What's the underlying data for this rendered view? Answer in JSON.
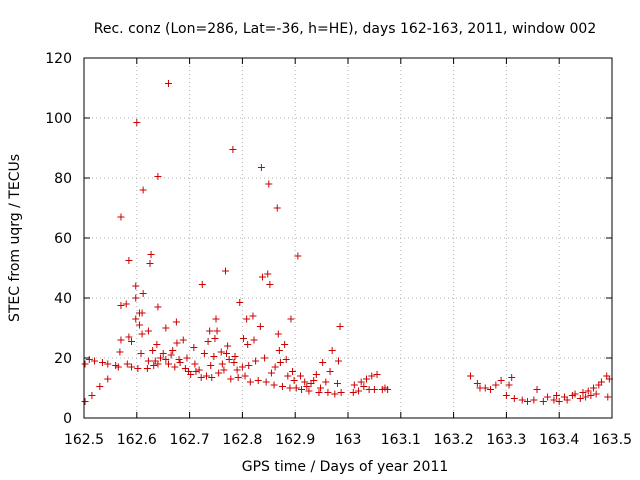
{
  "chart_data": {
    "type": "scatter",
    "title": "Rec. conz (Lon=286, Lat=-36, h=HE), days 162-163, 2011, window 002",
    "xlabel": "GPS time / Days of year 2011",
    "ylabel": "STEC from uqrg / TECUs",
    "xlim": [
      162.5,
      163.5
    ],
    "ylim": [
      0,
      120
    ],
    "grid": true,
    "legend": "none",
    "marker": "plus",
    "color": "#cc0000",
    "x_ticks": [
      "162.5",
      "162.6",
      "162.7",
      "162.8",
      "162.9",
      "163",
      "163.1",
      "163.2",
      "163.3",
      "163.4",
      "163.5"
    ],
    "y_ticks": [
      "0",
      "20",
      "40",
      "60",
      "80",
      "100",
      "120"
    ],
    "points": [
      [
        162.502,
        5.5
      ],
      [
        162.502,
        18
      ],
      [
        162.51,
        19.5
      ],
      [
        162.52,
        19
      ],
      [
        162.515,
        7.5
      ],
      [
        162.53,
        10.5
      ],
      [
        162.535,
        18.5
      ],
      [
        162.545,
        13
      ],
      [
        162.545,
        18
      ],
      [
        162.56,
        17.5
      ],
      [
        162.565,
        17
      ],
      [
        162.568,
        22
      ],
      [
        162.57,
        26
      ],
      [
        162.57,
        37.5
      ],
      [
        162.57,
        67
      ],
      [
        162.58,
        38
      ],
      [
        162.582,
        18
      ],
      [
        162.585,
        27
      ],
      [
        162.585,
        52.5
      ],
      [
        162.59,
        25.5
      ],
      [
        162.59,
        17
      ],
      [
        162.598,
        33
      ],
      [
        162.598,
        40
      ],
      [
        162.598,
        44
      ],
      [
        162.6,
        98.5
      ],
      [
        162.602,
        16.5
      ],
      [
        162.605,
        35
      ],
      [
        162.605,
        31
      ],
      [
        162.608,
        21.5
      ],
      [
        162.61,
        28
      ],
      [
        162.61,
        35
      ],
      [
        162.612,
        41.5
      ],
      [
        162.612,
        76
      ],
      [
        162.62,
        16.5
      ],
      [
        162.622,
        19
      ],
      [
        162.622,
        29
      ],
      [
        162.625,
        51.5
      ],
      [
        162.627,
        54.5
      ],
      [
        162.63,
        22.5
      ],
      [
        162.632,
        17.5
      ],
      [
        162.635,
        19
      ],
      [
        162.638,
        24.5
      ],
      [
        162.64,
        80.5
      ],
      [
        162.64,
        37
      ],
      [
        162.64,
        18
      ],
      [
        162.645,
        20
      ],
      [
        162.65,
        21.5
      ],
      [
        162.655,
        19.5
      ],
      [
        162.655,
        30
      ],
      [
        162.66,
        111.5
      ],
      [
        162.66,
        18
      ],
      [
        162.665,
        21
      ],
      [
        162.668,
        22.5
      ],
      [
        162.672,
        17
      ],
      [
        162.675,
        32
      ],
      [
        162.676,
        25
      ],
      [
        162.68,
        19.5
      ],
      [
        162.682,
        18.5
      ],
      [
        162.688,
        26
      ],
      [
        162.692,
        16.5
      ],
      [
        162.695,
        20
      ],
      [
        162.698,
        15.5
      ],
      [
        162.702,
        14.5
      ],
      [
        162.708,
        23.5
      ],
      [
        162.71,
        18
      ],
      [
        162.712,
        15.5
      ],
      [
        162.718,
        16
      ],
      [
        162.722,
        13.5
      ],
      [
        162.724,
        44.5
      ],
      [
        162.728,
        21.5
      ],
      [
        162.732,
        14
      ],
      [
        162.735,
        25.5
      ],
      [
        162.738,
        29
      ],
      [
        162.74,
        17.5
      ],
      [
        162.742,
        13.5
      ],
      [
        162.746,
        20.5
      ],
      [
        162.748,
        26.5
      ],
      [
        162.75,
        33
      ],
      [
        162.752,
        29
      ],
      [
        162.755,
        15
      ],
      [
        162.76,
        22
      ],
      [
        162.762,
        18
      ],
      [
        162.765,
        16
      ],
      [
        162.768,
        49
      ],
      [
        162.77,
        21.5
      ],
      [
        162.772,
        24
      ],
      [
        162.775,
        19.5
      ],
      [
        162.778,
        13
      ],
      [
        162.782,
        89.5
      ],
      [
        162.784,
        18.5
      ],
      [
        162.786,
        20.5
      ],
      [
        162.79,
        16
      ],
      [
        162.792,
        13.5
      ],
      [
        162.795,
        38.5
      ],
      [
        162.8,
        17
      ],
      [
        162.802,
        26.5
      ],
      [
        162.805,
        14
      ],
      [
        162.808,
        33
      ],
      [
        162.81,
        24.5
      ],
      [
        162.812,
        17.5
      ],
      [
        162.815,
        12
      ],
      [
        162.82,
        34
      ],
      [
        162.822,
        26
      ],
      [
        162.825,
        19
      ],
      [
        162.83,
        12.5
      ],
      [
        162.834,
        30.5
      ],
      [
        162.836,
        83.5
      ],
      [
        162.838,
        47
      ],
      [
        162.842,
        20
      ],
      [
        162.845,
        12
      ],
      [
        162.848,
        48
      ],
      [
        162.85,
        78
      ],
      [
        162.852,
        44.5
      ],
      [
        162.855,
        15
      ],
      [
        162.86,
        11
      ],
      [
        162.862,
        17
      ],
      [
        162.866,
        70
      ],
      [
        162.868,
        28
      ],
      [
        162.87,
        22.5
      ],
      [
        162.872,
        18.5
      ],
      [
        162.876,
        10.5
      ],
      [
        162.88,
        24.5
      ],
      [
        162.883,
        19.5
      ],
      [
        162.886,
        14
      ],
      [
        162.89,
        10
      ],
      [
        162.892,
        33
      ],
      [
        162.895,
        15.5
      ],
      [
        162.898,
        12.5
      ],
      [
        162.902,
        10
      ],
      [
        162.905,
        54
      ],
      [
        162.91,
        14
      ],
      [
        162.912,
        9.5
      ],
      [
        162.918,
        12
      ],
      [
        162.922,
        10.5
      ],
      [
        162.926,
        9
      ],
      [
        162.93,
        11.5
      ],
      [
        162.935,
        12.5
      ],
      [
        162.94,
        14.5
      ],
      [
        162.945,
        8.5
      ],
      [
        162.948,
        10
      ],
      [
        162.952,
        18.5
      ],
      [
        162.958,
        12
      ],
      [
        162.962,
        8.5
      ],
      [
        162.966,
        15.5
      ],
      [
        162.97,
        22.5
      ],
      [
        162.975,
        8
      ],
      [
        162.98,
        11.5
      ],
      [
        162.982,
        19
      ],
      [
        162.985,
        30.5
      ],
      [
        162.987,
        8.5
      ],
      [
        163.01,
        8.5
      ],
      [
        163.012,
        11
      ],
      [
        163.02,
        9
      ],
      [
        163.025,
        12
      ],
      [
        163.03,
        10.5
      ],
      [
        163.035,
        13
      ],
      [
        163.04,
        9.5
      ],
      [
        163.045,
        14
      ],
      [
        163.05,
        9.5
      ],
      [
        163.055,
        14.5
      ],
      [
        163.065,
        9.5
      ],
      [
        163.07,
        10
      ],
      [
        163.075,
        9.5
      ],
      [
        163.232,
        14
      ],
      [
        163.245,
        11.5
      ],
      [
        163.25,
        10
      ],
      [
        163.26,
        10
      ],
      [
        163.27,
        9.5
      ],
      [
        163.28,
        11
      ],
      [
        163.29,
        12.5
      ],
      [
        163.3,
        7.5
      ],
      [
        163.305,
        11
      ],
      [
        163.31,
        13.5
      ],
      [
        163.315,
        6.5
      ],
      [
        163.33,
        6
      ],
      [
        163.34,
        5.5
      ],
      [
        163.352,
        6
      ],
      [
        163.358,
        9.5
      ],
      [
        163.37,
        5.5
      ],
      [
        163.378,
        7
      ],
      [
        163.39,
        6
      ],
      [
        163.395,
        7.5
      ],
      [
        163.4,
        5.5
      ],
      [
        163.41,
        7
      ],
      [
        163.415,
        6
      ],
      [
        163.425,
        7.5
      ],
      [
        163.43,
        8
      ],
      [
        163.44,
        6.5
      ],
      [
        163.445,
        8.5
      ],
      [
        163.45,
        7
      ],
      [
        163.455,
        9
      ],
      [
        163.46,
        7.5
      ],
      [
        163.465,
        10
      ],
      [
        163.47,
        8
      ],
      [
        163.475,
        11
      ],
      [
        163.48,
        12
      ],
      [
        163.49,
        14
      ],
      [
        163.492,
        7
      ],
      [
        163.495,
        13
      ]
    ]
  }
}
